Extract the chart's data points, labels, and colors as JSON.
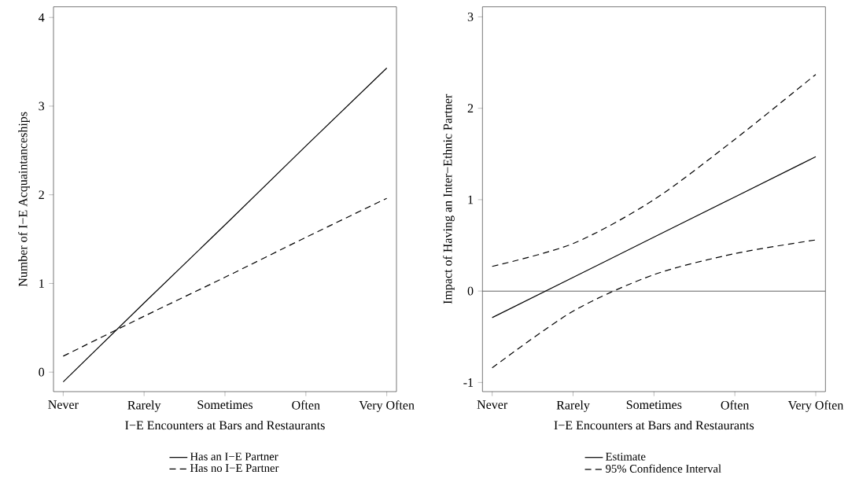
{
  "chart_data": [
    {
      "type": "line",
      "xlabel": "I−E Encounters at Bars and Restaurants",
      "ylabel": "Number of I−E Acquaintanceships",
      "categories": [
        "Never",
        "Rarely",
        "Sometimes",
        "Often",
        "Very Often"
      ],
      "ylim": [
        -0.22,
        4.12
      ],
      "yticks": [
        0,
        1,
        2,
        3,
        4
      ],
      "grid": false,
      "legend": "bottom",
      "marker": "none",
      "series": [
        {
          "name": "Has an I−E Partner",
          "color": "#000000",
          "line_style": "solid",
          "values": [
            -0.11,
            0.78,
            1.66,
            2.55,
            3.43
          ]
        },
        {
          "name": "Has no I−E Partner",
          "color": "#000000",
          "line_style": "dashed",
          "values": [
            0.18,
            0.63,
            1.07,
            1.52,
            1.96
          ]
        }
      ]
    },
    {
      "type": "line",
      "xlabel": "I−E Encounters at Bars and Restaurants",
      "ylabel": "Impact of Having an Inter−Ethnic Partner",
      "categories": [
        "Never",
        "Rarely",
        "Sometimes",
        "Often",
        "Very Often"
      ],
      "ylim": [
        -1.1,
        3.11
      ],
      "yticks": [
        -1,
        0,
        1,
        2,
        3
      ],
      "grid": false,
      "legend": "bottom",
      "marker": "none",
      "ref_lines": [
        {
          "axis": "y",
          "value": 0,
          "color": "#000000"
        }
      ],
      "series": [
        {
          "name": "Estimate",
          "color": "#000000",
          "line_style": "solid",
          "values": [
            -0.29,
            0.15,
            0.59,
            1.03,
            1.47
          ]
        },
        {
          "name": "95% Confidence Interval",
          "color": "#000000",
          "line_style": "dashed",
          "values": [
            0.27,
            0.52,
            1.0,
            1.66,
            2.37
          ]
        },
        {
          "color": "#000000",
          "line_style": "dashed",
          "values": [
            -0.84,
            -0.22,
            0.18,
            0.41,
            0.56
          ]
        }
      ]
    }
  ]
}
